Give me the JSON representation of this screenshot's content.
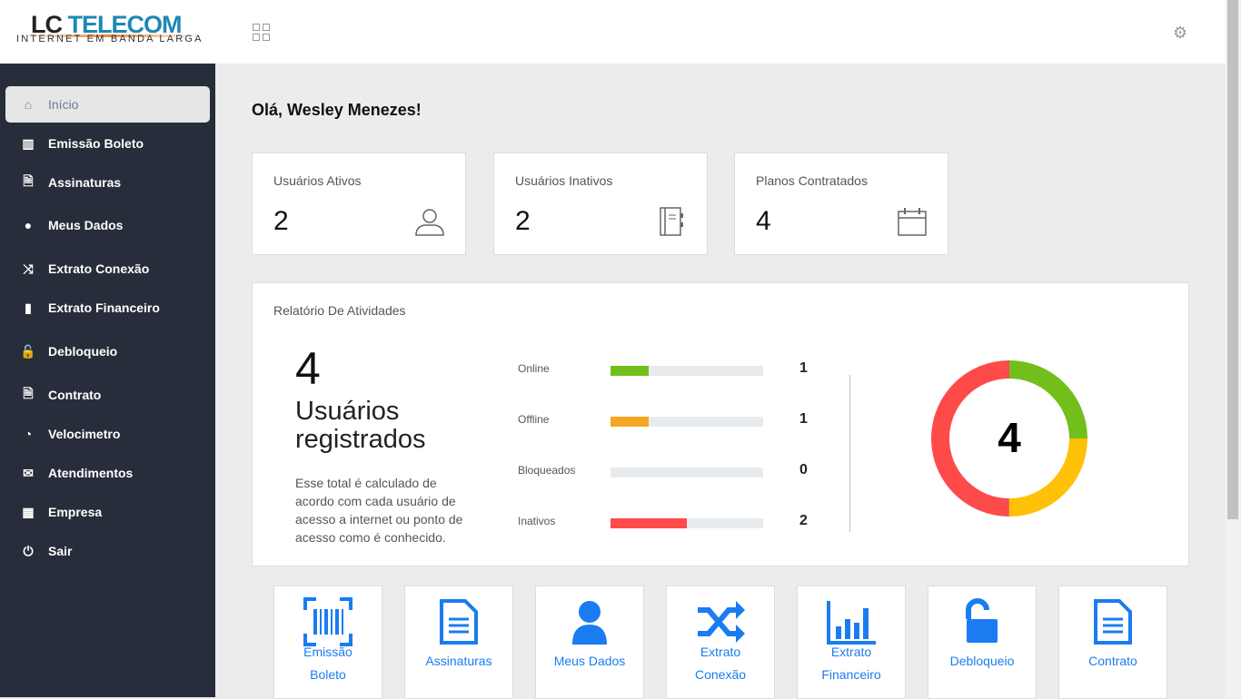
{
  "logo": {
    "brand_lc": "LC",
    "brand_telecom": "TELECOM",
    "tagline": "INTERNET EM BANDA LARGA"
  },
  "header": {
    "apps_icon": "grid-icon",
    "settings_icon": "gear-icon"
  },
  "sidebar": {
    "items": [
      {
        "label": "Início",
        "icon": "home-icon",
        "active": true
      },
      {
        "label": "Emissão Boleto",
        "icon": "barcode-icon"
      },
      {
        "label": "Assinaturas",
        "icon": "document-icon"
      },
      {
        "label": "Meus Dados",
        "icon": "user-icon"
      },
      {
        "label": "Extrato Conexão",
        "icon": "shuffle-icon"
      },
      {
        "label": "Extrato Financeiro",
        "icon": "bar-chart-icon"
      },
      {
        "label": "Debloqueio",
        "icon": "unlock-icon"
      },
      {
        "label": "Contrato",
        "icon": "document-icon"
      },
      {
        "label": "Velocimetro",
        "icon": "speedometer-icon"
      },
      {
        "label": "Atendimentos",
        "icon": "envelope-icon"
      },
      {
        "label": "Empresa",
        "icon": "building-icon"
      },
      {
        "label": "Sair",
        "icon": "power-icon"
      }
    ]
  },
  "main": {
    "greeting": "Olá, Wesley Menezes!",
    "cards": [
      {
        "label": "Usuários Ativos",
        "value": "2",
        "icon": "user-icon"
      },
      {
        "label": "Usuários Inativos",
        "value": "2",
        "icon": "notebook-icon"
      },
      {
        "label": "Planos Contratados",
        "value": "4",
        "icon": "calendar-icon"
      }
    ],
    "report": {
      "title": "Relatório De Atividades",
      "total": "4",
      "total_label": "Usuários registrados",
      "description": "Esse total é calculado de acordo com cada usuário de acesso a internet ou ponto de acesso como é conhecido.",
      "rows": [
        {
          "name": "Online",
          "count": "1",
          "value": 1,
          "color": "#72bf1b"
        },
        {
          "name": "Offline",
          "count": "1",
          "value": 1,
          "color": "#f5a623"
        },
        {
          "name": "Bloqueados",
          "count": "0",
          "value": 0,
          "color": "#9e9e9e"
        },
        {
          "name": "Inativos",
          "count": "2",
          "value": 2,
          "color": "#ff4a4a"
        }
      ],
      "max": 4,
      "donut": {
        "center": "4",
        "segments": [
          {
            "name": "Online",
            "value": 1,
            "color": "#72bf1b"
          },
          {
            "name": "Offline",
            "value": 1,
            "color": "#ffc107"
          },
          {
            "name": "Inativos",
            "value": 2,
            "color": "#ff4a4a"
          }
        ]
      }
    },
    "tiles": [
      {
        "label": "Emissão Boleto",
        "lines": [
          "Emissão",
          "Boleto"
        ],
        "icon": "barcode-icon"
      },
      {
        "label": "Assinaturas",
        "lines": [
          "Assinaturas"
        ],
        "icon": "document-icon"
      },
      {
        "label": "Meus Dados",
        "lines": [
          "Meus Dados"
        ],
        "icon": "user-icon"
      },
      {
        "label": "Extrato Conexão",
        "lines": [
          "Extrato",
          "Conexão"
        ],
        "icon": "shuffle-icon"
      },
      {
        "label": "Extrato Financeiro",
        "lines": [
          "Extrato",
          "Financeiro"
        ],
        "icon": "bar-chart-icon"
      },
      {
        "label": "Debloqueio",
        "lines": [
          "Debloqueio"
        ],
        "icon": "unlock-icon"
      },
      {
        "label": "Contrato",
        "lines": [
          "Contrato"
        ],
        "icon": "document-icon"
      }
    ]
  },
  "accent": "#1a7cf0"
}
